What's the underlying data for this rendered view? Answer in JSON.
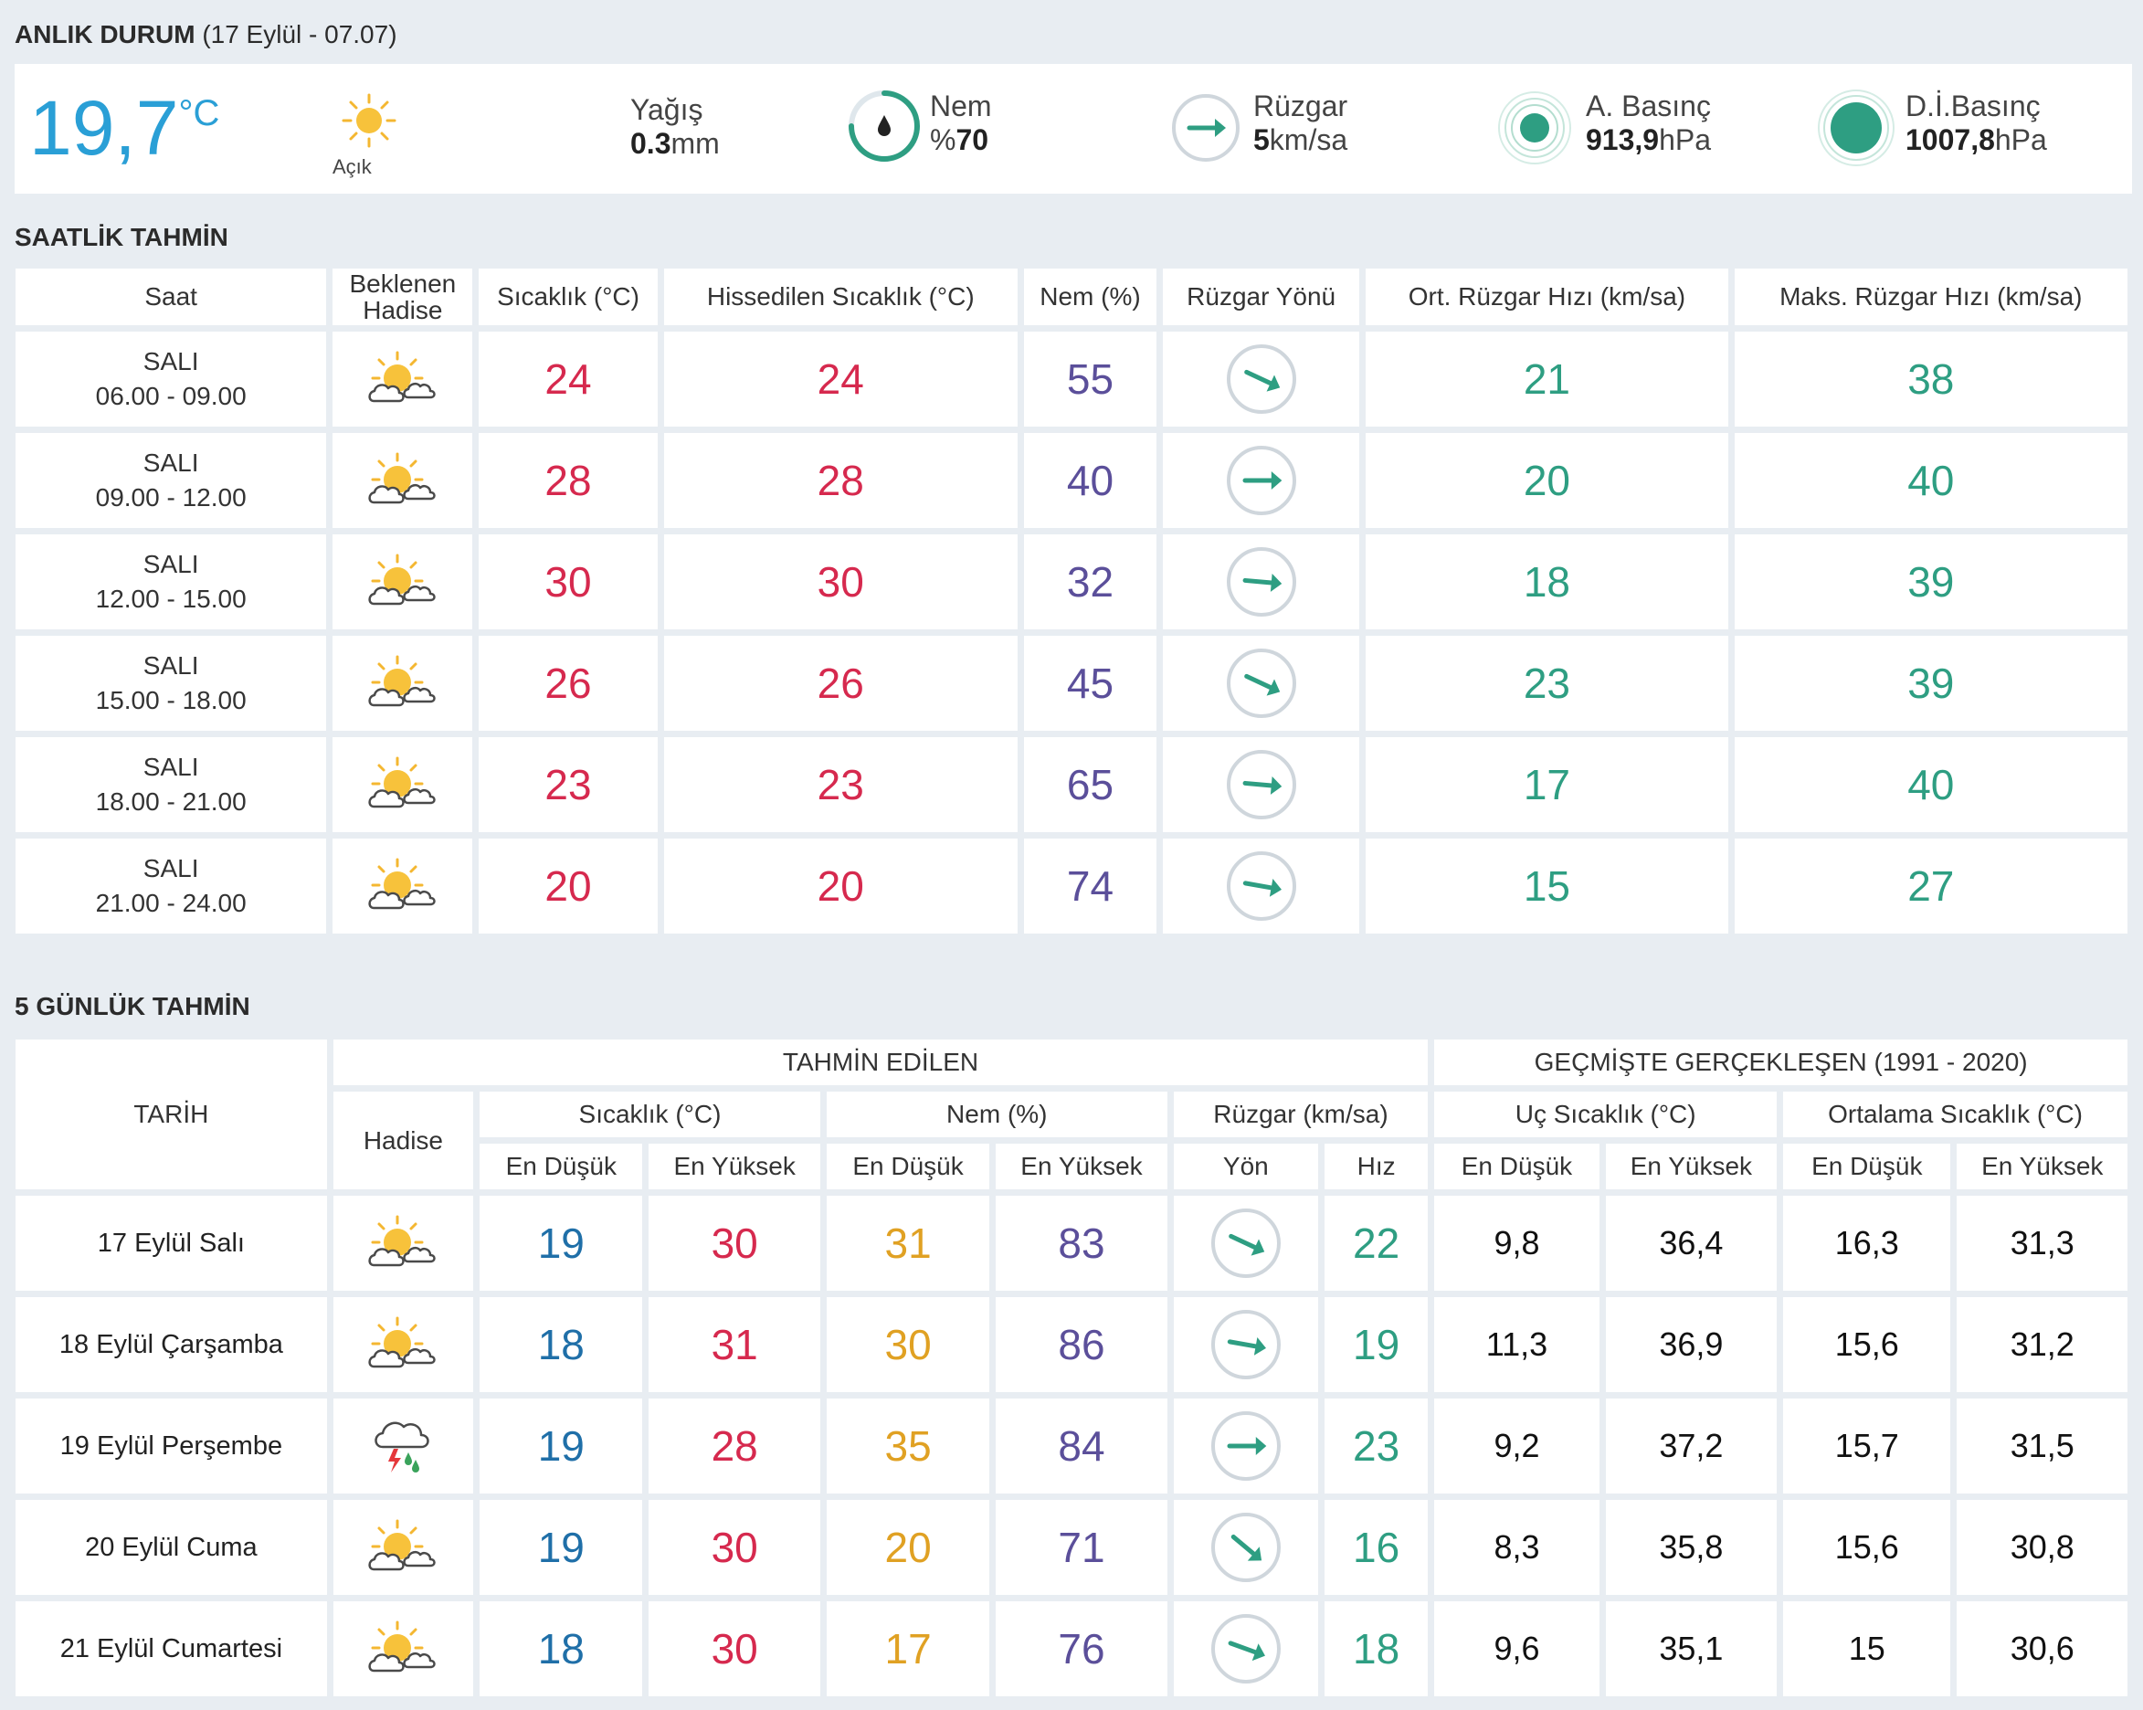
{
  "current": {
    "title": "ANLIK DURUM",
    "datetime": "(17 Eylül - 07.07)",
    "temp_value": "19,7",
    "temp_unit": "°C",
    "sky": "Açık",
    "sky_icon": "sun-icon",
    "precip": {
      "label": "Yağış",
      "value": "0.3",
      "unit": "mm"
    },
    "humidity": {
      "label": "Nem",
      "prefix": "%",
      "value": "70"
    },
    "wind": {
      "label": "Rüzgar",
      "value": "5",
      "unit": "km/sa"
    },
    "pressure": {
      "label": "A. Basınç",
      "value": "913,9",
      "unit": "hPa"
    },
    "sea_pressure": {
      "label": "D.İ.Basınç",
      "value": "1007,8",
      "unit": "hPa"
    }
  },
  "hourly": {
    "title": "SAATLİK TAHMİN",
    "headers": [
      "Saat",
      "Beklenen Hadise",
      "Sıcaklık (°C)",
      "Hissedilen Sıcaklık (°C)",
      "Nem (%)",
      "Rüzgar Yönü",
      "Ort. Rüzgar Hızı (km/sa)",
      "Maks. Rüzgar Hızı (km/sa)"
    ],
    "header_expected_line1": "Beklenen",
    "header_expected_line2": "Hadise",
    "rows": [
      {
        "day": "SALI",
        "time": "06.00 - 09.00",
        "icon": "partly-cloudy-icon",
        "temp": "24",
        "feels": "24",
        "humidity": "55",
        "wind_dir_deg": 115,
        "avg_wind": "21",
        "max_wind": "38"
      },
      {
        "day": "SALI",
        "time": "09.00 - 12.00",
        "icon": "partly-cloudy-icon",
        "temp": "28",
        "feels": "28",
        "humidity": "40",
        "wind_dir_deg": 90,
        "avg_wind": "20",
        "max_wind": "40"
      },
      {
        "day": "SALI",
        "time": "12.00 - 15.00",
        "icon": "partly-cloudy-icon",
        "temp": "30",
        "feels": "30",
        "humidity": "32",
        "wind_dir_deg": 95,
        "avg_wind": "18",
        "max_wind": "39"
      },
      {
        "day": "SALI",
        "time": "15.00 - 18.00",
        "icon": "partly-cloudy-icon",
        "temp": "26",
        "feels": "26",
        "humidity": "45",
        "wind_dir_deg": 115,
        "avg_wind": "23",
        "max_wind": "39"
      },
      {
        "day": "SALI",
        "time": "18.00 - 21.00",
        "icon": "partly-cloudy-icon",
        "temp": "23",
        "feels": "23",
        "humidity": "65",
        "wind_dir_deg": 95,
        "avg_wind": "17",
        "max_wind": "40"
      },
      {
        "day": "SALI",
        "time": "21.00 - 24.00",
        "icon": "partly-cloudy-icon",
        "temp": "20",
        "feels": "20",
        "humidity": "74",
        "wind_dir_deg": 100,
        "avg_wind": "15",
        "max_wind": "27"
      }
    ]
  },
  "daily": {
    "title": "5 GÜNLÜK TAHMİN",
    "h_date": "TARİH",
    "h_forecast": "TAHMİN EDİLEN",
    "h_history": "GEÇMİŞTE GERÇEKLEŞEN (1991 - 2020)",
    "h_event": "Hadise",
    "h_temp": "Sıcaklık (°C)",
    "h_humidity": "Nem (%)",
    "h_wind": "Rüzgar (km/sa)",
    "h_extreme": "Uç Sıcaklık (°C)",
    "h_avg": "Ortalama Sıcaklık (°C)",
    "h_low": "En Düşük",
    "h_high": "En Yüksek",
    "h_dir": "Yön",
    "h_speed": "Hız",
    "rows": [
      {
        "date": "17 Eylül Salı",
        "icon": "partly-cloudy-icon",
        "tmin": "19",
        "tmax": "30",
        "hmin": "31",
        "hmax": "83",
        "wind_dir_deg": 115,
        "wind_speed": "22",
        "ext_min": "9,8",
        "ext_max": "36,4",
        "avg_min": "16,3",
        "avg_max": "31,3"
      },
      {
        "date": "18 Eylül Çarşamba",
        "icon": "partly-cloudy-icon",
        "tmin": "18",
        "tmax": "31",
        "hmin": "30",
        "hmax": "86",
        "wind_dir_deg": 100,
        "wind_speed": "19",
        "ext_min": "11,3",
        "ext_max": "36,9",
        "avg_min": "15,6",
        "avg_max": "31,2"
      },
      {
        "date": "19 Eylül Perşembe",
        "icon": "thunderstorm-icon",
        "tmin": "19",
        "tmax": "28",
        "hmin": "35",
        "hmax": "84",
        "wind_dir_deg": 90,
        "wind_speed": "23",
        "ext_min": "9,2",
        "ext_max": "37,2",
        "avg_min": "15,7",
        "avg_max": "31,5"
      },
      {
        "date": "20 Eylül Cuma",
        "icon": "partly-cloudy-icon",
        "tmin": "19",
        "tmax": "30",
        "hmin": "20",
        "hmax": "71",
        "wind_dir_deg": 130,
        "wind_speed": "16",
        "ext_min": "8,3",
        "ext_max": "35,8",
        "avg_min": "15,6",
        "avg_max": "30,8"
      },
      {
        "date": "21 Eylül Cumartesi",
        "icon": "partly-cloudy-icon",
        "tmin": "18",
        "tmax": "30",
        "hmin": "17",
        "hmax": "76",
        "wind_dir_deg": 110,
        "wind_speed": "18",
        "ext_min": "9,6",
        "ext_max": "35,1",
        "avg_min": "15",
        "avg_max": "30,6"
      }
    ]
  }
}
